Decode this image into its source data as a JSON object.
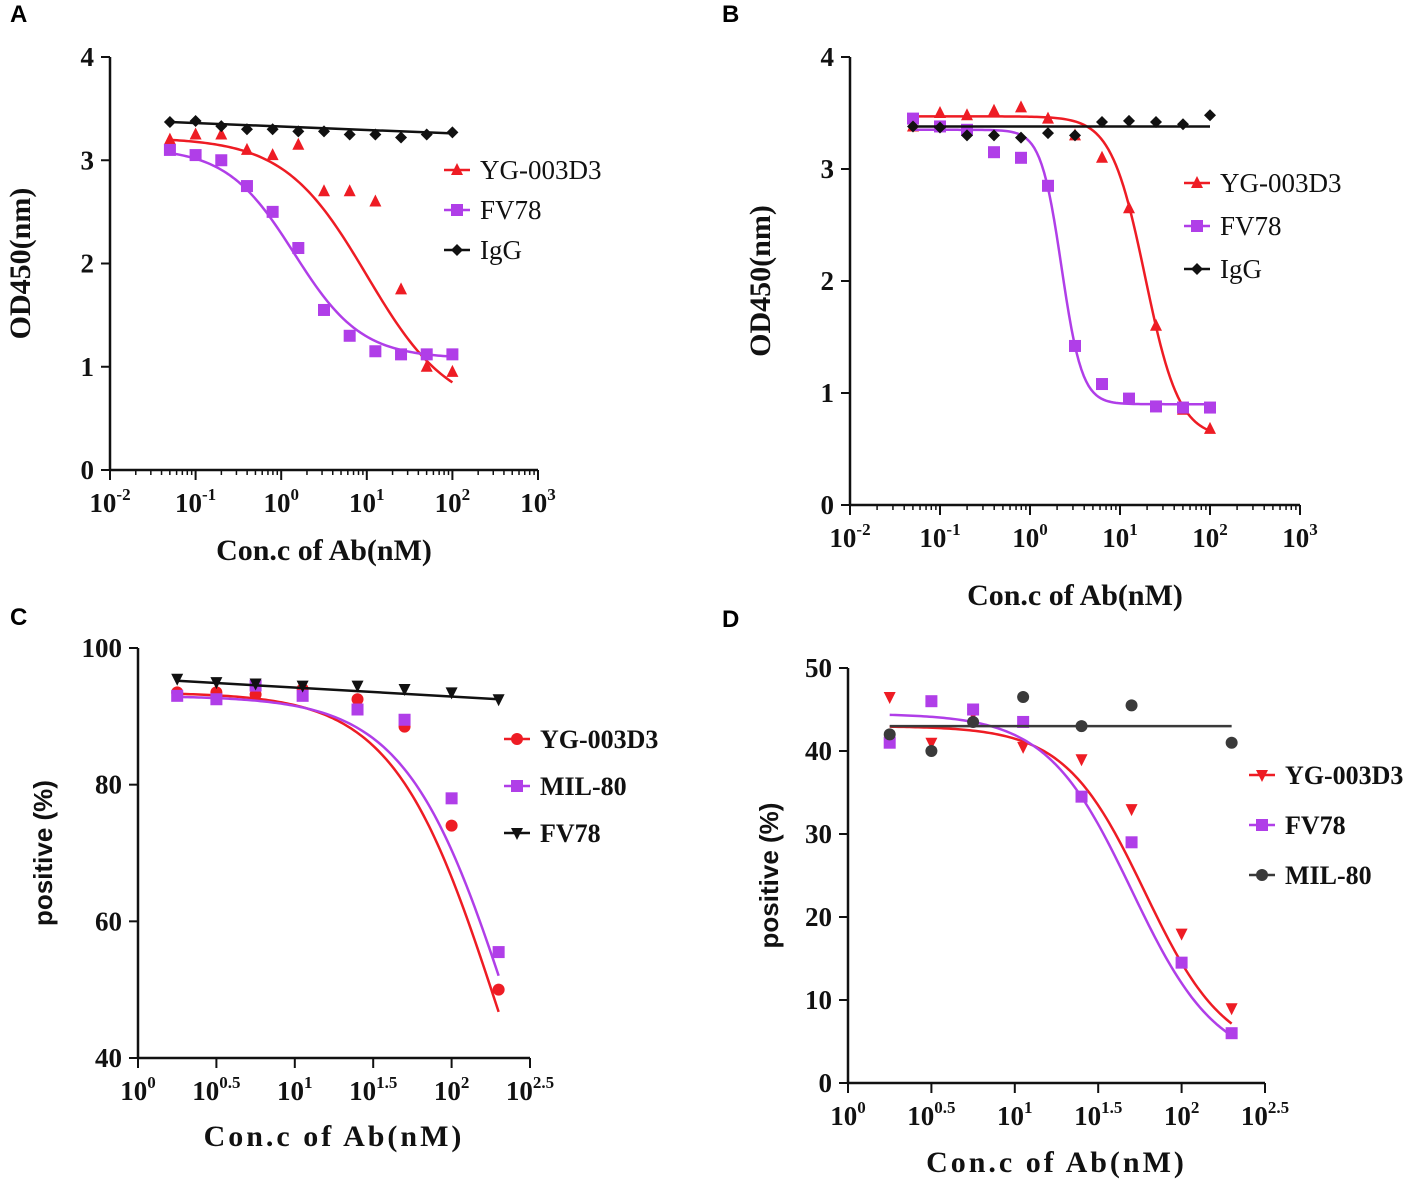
{
  "colors": {
    "red": "#ee1c24",
    "purple": "#b03ee8",
    "black": "#111111",
    "gray": "#3a3a3a"
  },
  "chart_data": [
    {
      "panel": "A",
      "type": "scatter",
      "xlabel": "Con.c of Ab(nM)",
      "ylabel": "OD450(nm)",
      "xscale": "log10",
      "xlim": [
        -2,
        3
      ],
      "ylim": [
        0,
        4
      ],
      "xticks": [
        {
          "base": "10",
          "exp": "-2",
          "v": -2
        },
        {
          "base": "10",
          "exp": "-1",
          "v": -1
        },
        {
          "base": "10",
          "exp": "0",
          "v": 0
        },
        {
          "base": "10",
          "exp": "1",
          "v": 1
        },
        {
          "base": "10",
          "exp": "2",
          "v": 2
        },
        {
          "base": "10",
          "exp": "3",
          "v": 3
        }
      ],
      "yticks": [
        "0",
        "1",
        "2",
        "3",
        "4"
      ],
      "legend_position": "center-right",
      "series": [
        {
          "name": "YG-003D3",
          "marker": "triangle",
          "color": "#ee1c24",
          "x": [
            -1.3,
            -1.0,
            -0.7,
            -0.4,
            -0.1,
            0.2,
            0.5,
            0.8,
            1.1,
            1.4,
            1.7,
            2.0
          ],
          "y": [
            3.2,
            3.25,
            3.25,
            3.1,
            3.05,
            3.15,
            2.7,
            2.7,
            2.6,
            1.75,
            1.0,
            0.95
          ],
          "fit": {
            "top": 3.22,
            "bottom": 0.55,
            "logEC50": 1.0,
            "hill": 0.9
          }
        },
        {
          "name": "FV78",
          "marker": "square",
          "color": "#b03ee8",
          "x": [
            -1.3,
            -1.0,
            -0.7,
            -0.4,
            -0.1,
            0.2,
            0.5,
            0.8,
            1.1,
            1.4,
            1.7,
            2.0
          ],
          "y": [
            3.1,
            3.05,
            3.0,
            2.75,
            2.5,
            2.15,
            1.55,
            1.3,
            1.15,
            1.12,
            1.12,
            1.12
          ],
          "fit": {
            "top": 3.12,
            "bottom": 1.08,
            "logEC50": 0.15,
            "hill": 1.1
          }
        },
        {
          "name": "IgG",
          "marker": "diamond",
          "color": "#111111",
          "x": [
            -1.3,
            -1.0,
            -0.7,
            -0.4,
            -0.1,
            0.2,
            0.5,
            0.8,
            1.1,
            1.4,
            1.7,
            2.0
          ],
          "y": [
            3.37,
            3.38,
            3.33,
            3.3,
            3.3,
            3.28,
            3.28,
            3.25,
            3.25,
            3.22,
            3.25,
            3.27
          ],
          "fit": {
            "line": [
              3.37,
              3.26
            ]
          }
        }
      ]
    },
    {
      "panel": "B",
      "type": "scatter",
      "xlabel": "Con.c of Ab(nM)",
      "ylabel": "OD450(nm)",
      "xscale": "log10",
      "xlim": [
        -2,
        3
      ],
      "ylim": [
        0,
        4
      ],
      "xticks": [
        {
          "base": "10",
          "exp": "-2",
          "v": -2
        },
        {
          "base": "10",
          "exp": "-1",
          "v": -1
        },
        {
          "base": "10",
          "exp": "0",
          "v": 0
        },
        {
          "base": "10",
          "exp": "1",
          "v": 1
        },
        {
          "base": "10",
          "exp": "2",
          "v": 2
        },
        {
          "base": "10",
          "exp": "3",
          "v": 3
        }
      ],
      "yticks": [
        "0",
        "1",
        "2",
        "3",
        "4"
      ],
      "legend_position": "center-right",
      "series": [
        {
          "name": "YG-003D3",
          "marker": "triangle",
          "color": "#ee1c24",
          "x": [
            -1.3,
            -1.0,
            -0.7,
            -0.4,
            -0.1,
            0.2,
            0.5,
            0.8,
            1.1,
            1.4,
            1.7,
            2.0
          ],
          "y": [
            3.38,
            3.5,
            3.48,
            3.52,
            3.55,
            3.45,
            3.3,
            3.1,
            2.65,
            1.6,
            0.85,
            0.68
          ],
          "fit": {
            "top": 3.47,
            "bottom": 0.6,
            "logEC50": 1.28,
            "hill": 2.3
          }
        },
        {
          "name": "FV78",
          "marker": "square",
          "color": "#b03ee8",
          "x": [
            -1.3,
            -1.0,
            -0.7,
            -0.4,
            -0.1,
            0.2,
            0.5,
            0.8,
            1.1,
            1.4,
            1.7,
            2.0
          ],
          "y": [
            3.45,
            3.38,
            3.35,
            3.15,
            3.1,
            2.85,
            1.42,
            1.08,
            0.95,
            0.88,
            0.87,
            0.87
          ],
          "fit": {
            "top": 3.35,
            "bottom": 0.9,
            "logEC50": 0.35,
            "hill": 3.8
          }
        },
        {
          "name": "IgG",
          "marker": "diamond",
          "color": "#111111",
          "x": [
            -1.3,
            -1.0,
            -0.7,
            -0.4,
            -0.1,
            0.2,
            0.5,
            0.8,
            1.1,
            1.4,
            1.7,
            2.0
          ],
          "y": [
            3.38,
            3.37,
            3.3,
            3.3,
            3.28,
            3.32,
            3.3,
            3.42,
            3.43,
            3.42,
            3.4,
            3.48
          ],
          "fit": {
            "line": [
              3.38,
              3.38
            ]
          }
        }
      ]
    },
    {
      "panel": "C",
      "type": "scatter",
      "xlabel": "Con.c of Ab(nM)",
      "ylabel": "positive (%)",
      "xscale": "log10",
      "xlim": [
        0,
        2.5
      ],
      "ylim": [
        40,
        100
      ],
      "xticks": [
        {
          "base": "10",
          "exp": "0",
          "v": 0
        },
        {
          "base": "10",
          "exp": "0.5",
          "v": 0.5
        },
        {
          "base": "10",
          "exp": "1",
          "v": 1
        },
        {
          "base": "10",
          "exp": "1.5",
          "v": 1.5
        },
        {
          "base": "10",
          "exp": "2",
          "v": 2
        },
        {
          "base": "10",
          "exp": "2.5",
          "v": 2.5
        }
      ],
      "yticks": [
        "40",
        "60",
        "80",
        "100"
      ],
      "legend_position": "center-right",
      "series": [
        {
          "name": "YG-003D3",
          "marker": "circle",
          "color": "#ee1c24",
          "x": [
            0.25,
            0.5,
            0.75,
            1.05,
            1.4,
            1.7,
            2.0,
            2.3
          ],
          "y": [
            93.5,
            93.5,
            93.2,
            94.0,
            92.5,
            88.5,
            74.0,
            50.0
          ],
          "fit": {
            "top": 93.5,
            "bottom": 0,
            "logEC50": 2.3,
            "hill": 1.3
          }
        },
        {
          "name": "MIL-80",
          "marker": "square",
          "color": "#b03ee8",
          "x": [
            0.25,
            0.5,
            0.75,
            1.05,
            1.4,
            1.7,
            2.0,
            2.3
          ],
          "y": [
            93.0,
            92.5,
            94.5,
            93.0,
            91.0,
            89.5,
            78.0,
            55.5
          ],
          "fit": {
            "top": 93.0,
            "bottom": 0,
            "logEC50": 2.38,
            "hill": 1.3
          }
        },
        {
          "name": "FV78",
          "marker": "triangle-down",
          "color": "#111111",
          "x": [
            0.25,
            0.5,
            0.75,
            1.05,
            1.4,
            1.7,
            2.0,
            2.3
          ],
          "y": [
            95.5,
            95.0,
            94.8,
            94.5,
            94.5,
            94.0,
            93.5,
            92.5
          ],
          "fit": {
            "line": [
              95.2,
              92.5
            ]
          }
        }
      ]
    },
    {
      "panel": "D",
      "type": "scatter",
      "xlabel": "Con.c of Ab(nM)",
      "ylabel": "positive (%)",
      "xscale": "log10",
      "xlim": [
        0,
        2.5
      ],
      "ylim": [
        0,
        50
      ],
      "xticks": [
        {
          "base": "10",
          "exp": "0",
          "v": 0
        },
        {
          "base": "10",
          "exp": "0.5",
          "v": 0.5
        },
        {
          "base": "10",
          "exp": "1",
          "v": 1
        },
        {
          "base": "10",
          "exp": "1.5",
          "v": 1.5
        },
        {
          "base": "10",
          "exp": "2",
          "v": 2
        },
        {
          "base": "10",
          "exp": "2.5",
          "v": 2.5
        }
      ],
      "yticks": [
        "0",
        "10",
        "20",
        "30",
        "40",
        "50"
      ],
      "legend_position": "center-right",
      "series": [
        {
          "name": "YG-003D3",
          "marker": "triangle-down",
          "color": "#ee1c24",
          "x": [
            0.25,
            0.5,
            0.75,
            1.05,
            1.4,
            1.7,
            2.0,
            2.3
          ],
          "y": [
            46.5,
            41.0,
            44.5,
            40.5,
            39.0,
            33.0,
            18.0,
            9.0
          ],
          "fit": {
            "top": 43.0,
            "bottom": 3.0,
            "logEC50": 1.78,
            "hill": 1.8
          }
        },
        {
          "name": "FV78",
          "marker": "square",
          "color": "#b03ee8",
          "x": [
            0.25,
            0.5,
            0.75,
            1.05,
            1.4,
            1.7,
            2.0,
            2.3
          ],
          "y": [
            41.0,
            46.0,
            45.0,
            43.5,
            34.5,
            29.0,
            14.5,
            6.0
          ],
          "fit": {
            "top": 44.5,
            "bottom": 2.0,
            "logEC50": 1.7,
            "hill": 1.7
          }
        },
        {
          "name": "MIL-80",
          "marker": "circle",
          "color": "#3a3a3a",
          "x": [
            0.25,
            0.5,
            0.75,
            1.05,
            1.4,
            1.7,
            2.3
          ],
          "y": [
            42.0,
            40.0,
            43.5,
            46.5,
            43.0,
            45.5,
            41.0
          ],
          "fit": {
            "line": [
              43.0,
              43.0
            ]
          }
        }
      ]
    }
  ]
}
